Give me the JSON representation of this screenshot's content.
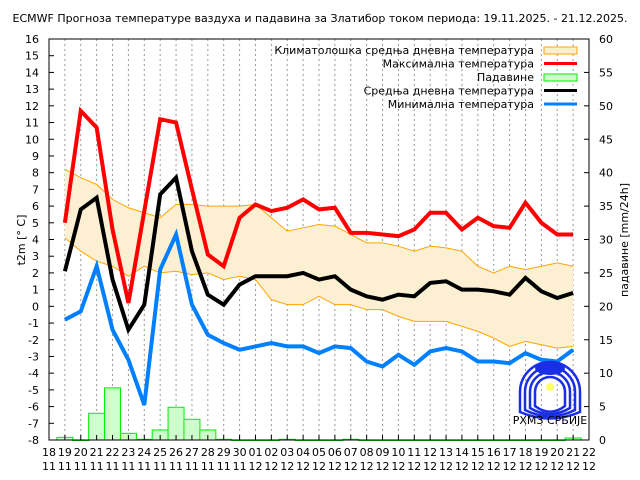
{
  "chart_data": {
    "type": "line",
    "title": "ECMWF Прогноза температуре ваздуха и падавина за Златибор током периода: 19.11.2025. - 21.12.2025.",
    "ylabel": "t2m [° C]",
    "y2label": "падавине [mm/24h]",
    "ylim": [
      -8,
      16
    ],
    "y2lim": [
      0,
      60
    ],
    "grid": "vertical dashed",
    "legend_position": "top-right",
    "x_tick_labels": [
      [
        "18",
        "11"
      ],
      [
        "19",
        "11"
      ],
      [
        "20",
        "11"
      ],
      [
        "21",
        "11"
      ],
      [
        "22",
        "11"
      ],
      [
        "23",
        "11"
      ],
      [
        "24",
        "11"
      ],
      [
        "25",
        "11"
      ],
      [
        "26",
        "11"
      ],
      [
        "27",
        "11"
      ],
      [
        "28",
        "11"
      ],
      [
        "29",
        "11"
      ],
      [
        "30",
        "11"
      ],
      [
        "01",
        "12"
      ],
      [
        "02",
        "12"
      ],
      [
        "03",
        "12"
      ],
      [
        "04",
        "12"
      ],
      [
        "05",
        "12"
      ],
      [
        "06",
        "12"
      ],
      [
        "07",
        "12"
      ],
      [
        "08",
        "12"
      ],
      [
        "09",
        "12"
      ],
      [
        "10",
        "12"
      ],
      [
        "11",
        "12"
      ],
      [
        "12",
        "12"
      ],
      [
        "13",
        "12"
      ],
      [
        "14",
        "12"
      ],
      [
        "15",
        "12"
      ],
      [
        "16",
        "12"
      ],
      [
        "17",
        "12"
      ],
      [
        "18",
        "12"
      ],
      [
        "19",
        "12"
      ],
      [
        "20",
        "12"
      ],
      [
        "21",
        "12"
      ],
      [
        "22",
        "12"
      ]
    ],
    "x": [
      "19.11",
      "20.11",
      "21.11",
      "22.11",
      "23.11",
      "24.11",
      "25.11",
      "26.11",
      "27.11",
      "28.11",
      "29.11",
      "30.11",
      "01.12",
      "02.12",
      "03.12",
      "04.12",
      "05.12",
      "06.12",
      "07.12",
      "08.12",
      "09.12",
      "10.12",
      "11.12",
      "12.12",
      "13.12",
      "14.12",
      "15.12",
      "16.12",
      "17.12",
      "18.12",
      "19.12",
      "20.12",
      "21.12"
    ],
    "climate_band": {
      "name": "Климатолошка средња дневна температура",
      "color": "#ffa500",
      "fill": "#fdf0d2",
      "upper": [
        8.2,
        7.7,
        7.3,
        6.4,
        5.9,
        5.6,
        5.3,
        6.1,
        6.1,
        6.0,
        6.0,
        6.0,
        6.1,
        5.3,
        4.5,
        4.7,
        4.9,
        4.8,
        4.3,
        3.8,
        3.8,
        3.6,
        3.3,
        3.6,
        3.5,
        3.3,
        2.4,
        2.0,
        2.4,
        2.2,
        2.4,
        2.6,
        2.4
      ],
      "lower": [
        4.1,
        3.3,
        2.7,
        2.4,
        1.8,
        2.4,
        2.0,
        2.1,
        1.9,
        2.0,
        1.6,
        1.8,
        1.6,
        0.4,
        0.1,
        0.1,
        0.6,
        0.1,
        0.1,
        -0.2,
        -0.2,
        -0.6,
        -0.9,
        -0.9,
        -0.9,
        -1.2,
        -1.5,
        -1.9,
        -2.4,
        -2.1,
        -2.3,
        -2.5,
        -2.4
      ]
    },
    "series": [
      {
        "name": "Максимална температура",
        "color": "#ff0000",
        "values": [
          5.0,
          11.7,
          10.7,
          4.6,
          0.2,
          5.7,
          11.2,
          11.0,
          7.0,
          3.1,
          2.4,
          5.3,
          6.1,
          5.7,
          5.9,
          6.4,
          5.8,
          5.9,
          4.4,
          4.4,
          4.3,
          4.2,
          4.6,
          5.6,
          5.6,
          4.6,
          5.3,
          4.8,
          4.7,
          6.2,
          5.0,
          4.3,
          4.3
        ]
      },
      {
        "name": "Средња дневна температура",
        "color": "#000000",
        "values": [
          2.1,
          5.8,
          6.5,
          1.6,
          -1.4,
          0.1,
          6.7,
          7.7,
          3.3,
          0.7,
          0.1,
          1.3,
          1.8,
          1.8,
          1.8,
          2.0,
          1.6,
          1.8,
          1.0,
          0.6,
          0.4,
          0.7,
          0.6,
          1.4,
          1.5,
          1.0,
          1.0,
          0.9,
          0.7,
          1.7,
          0.9,
          0.5,
          0.8
        ]
      },
      {
        "name": "Минимална температура",
        "color": "#0080ff",
        "values": [
          -0.8,
          -0.3,
          2.4,
          -1.4,
          -3.2,
          -5.9,
          2.2,
          4.3,
          0.1,
          -1.7,
          -2.2,
          -2.6,
          -2.4,
          -2.2,
          -2.4,
          -2.4,
          -2.8,
          -2.4,
          -2.5,
          -3.3,
          -3.6,
          -2.9,
          -3.5,
          -2.7,
          -2.5,
          -2.7,
          -3.3,
          -3.3,
          -3.4,
          -2.8,
          -3.2,
          -3.3,
          -2.6
        ]
      }
    ],
    "precipitation": {
      "name": "Падавине",
      "color": "#00ee00",
      "fill": "#ccffcc",
      "values": [
        0.4,
        0,
        4.0,
        7.8,
        1.0,
        0.1,
        1.5,
        4.9,
        3.1,
        1.5,
        0.1,
        0,
        0,
        0,
        0.1,
        0,
        0,
        0,
        0.1,
        0,
        0,
        0,
        0,
        0,
        0,
        0,
        0,
        0,
        0,
        0,
        0,
        0,
        0.3
      ]
    },
    "legend": [
      "Климатолошка средња дневна температура",
      "Максимална температура",
      "Падавине",
      "Средња дневна температура",
      "Минимална температура"
    ],
    "y_ticks": [
      -8,
      -7,
      -6,
      -5,
      -4,
      -3,
      -2,
      -1,
      0,
      1,
      2,
      3,
      4,
      5,
      6,
      7,
      8,
      9,
      10,
      11,
      12,
      13,
      14,
      15,
      16
    ],
    "y2_ticks": [
      0,
      5,
      10,
      15,
      20,
      25,
      30,
      35,
      40,
      45,
      50,
      55,
      60
    ]
  },
  "logo_text": "РХМЗ СРБИЈЕ"
}
